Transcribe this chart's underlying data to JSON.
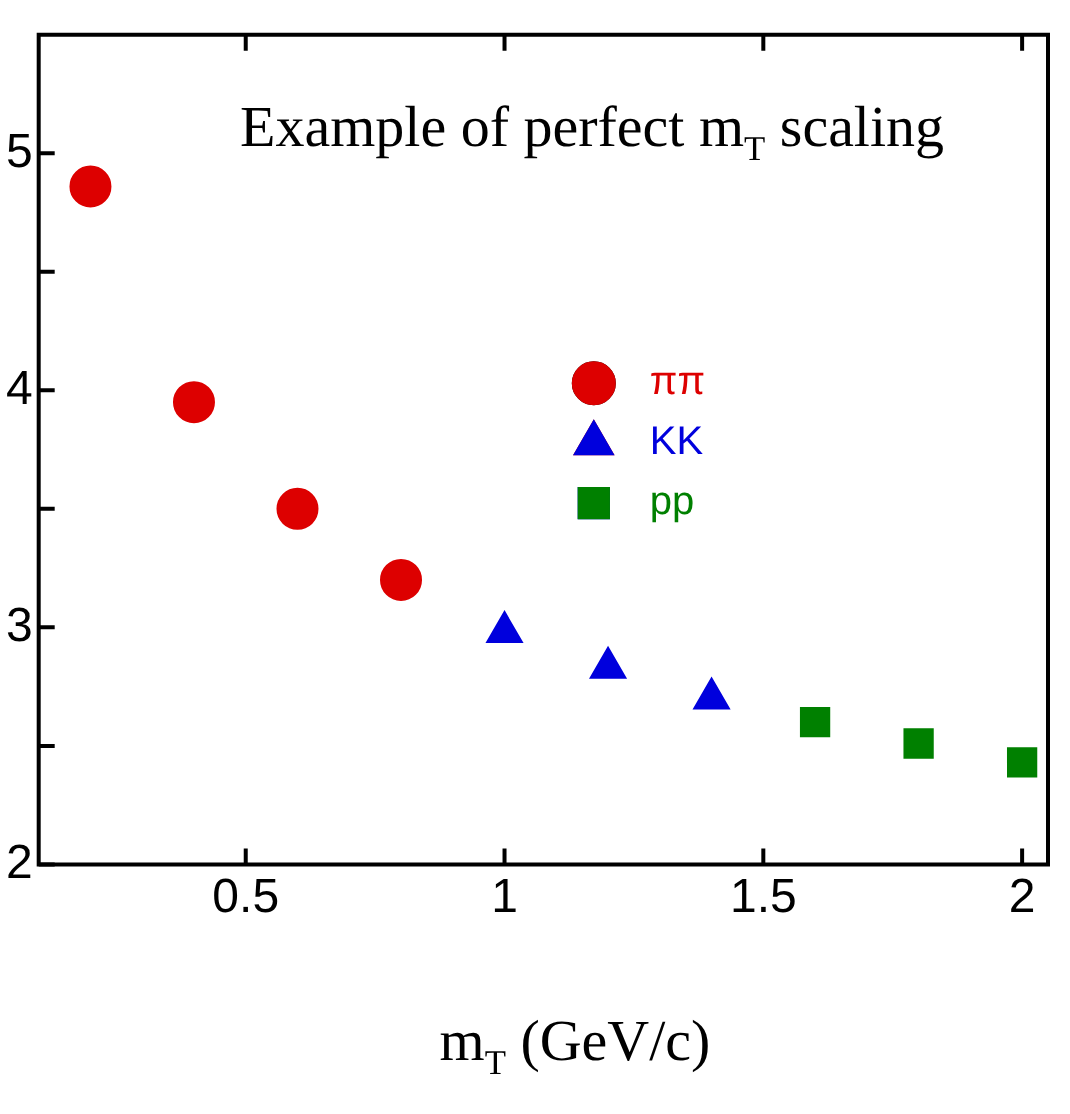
{
  "chart_data": {
    "type": "scatter",
    "title": "Example of perfect m$_{T}$ scaling",
    "xlabel": "m$_{T}$ (GeV/c)",
    "series": [
      {
        "name": "ππ",
        "color": "#dd0000",
        "marker": "circle",
        "x": [
          0.2,
          0.4,
          0.6,
          0.8
        ],
        "values": [
          4.86,
          3.95,
          3.5,
          3.2
        ]
      },
      {
        "name": "KK",
        "color": "#0000dd",
        "marker": "triangle",
        "x": [
          1.0,
          1.2,
          1.4
        ],
        "values": [
          2.98,
          2.83,
          2.7
        ]
      },
      {
        "name": "pp",
        "color": "#008000",
        "marker": "square",
        "x": [
          1.6,
          1.8,
          2.0
        ],
        "values": [
          2.6,
          2.51,
          2.43
        ]
      }
    ],
    "xlim": [
      0.1,
      2.05
    ],
    "xticks": [
      0.5,
      1,
      1.5,
      2
    ],
    "ylim": [
      2,
      5.5
    ],
    "yticks": [
      2,
      {
        "value": 2.5,
        "label": null
      },
      3,
      {
        "value": 3.5,
        "label": null
      },
      4,
      {
        "value": 4.5,
        "label": null
      },
      5
    ],
    "grid": false,
    "legend": "right"
  }
}
